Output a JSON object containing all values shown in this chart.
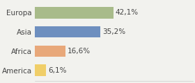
{
  "categories": [
    "Europa",
    "Asia",
    "Africa",
    "America"
  ],
  "values": [
    42.1,
    35.2,
    16.6,
    6.1
  ],
  "labels": [
    "42,1%",
    "35,2%",
    "16,6%",
    "6,1%"
  ],
  "bar_colors": [
    "#a8bb8a",
    "#6e8fbf",
    "#e8a87a",
    "#f0ce68"
  ],
  "background_color": "#f2f2ee",
  "xlim_max": 85,
  "label_fontsize": 7.5,
  "category_fontsize": 7.5,
  "bar_height": 0.6
}
